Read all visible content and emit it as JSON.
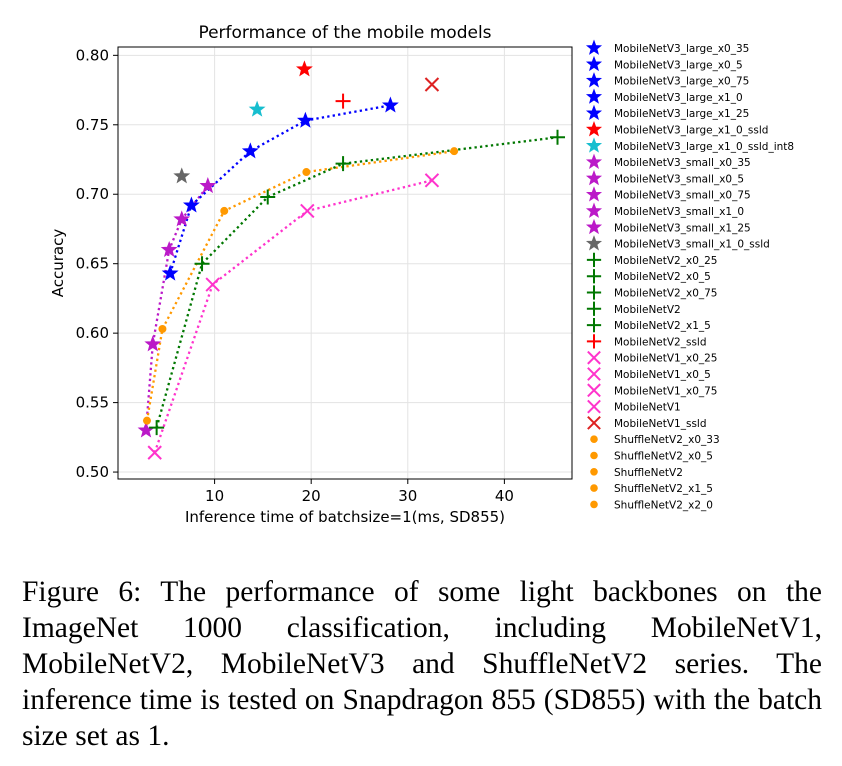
{
  "caption": "Figure 6: The performance of some light backbones on the ImageNet 1000 classification, including MobileNetV1, MobileNetV2, MobileNetV3 and ShuffleNetV2 series. The inference time is tested on Snapdragon 855 (SD855) with the batch size set as 1.",
  "chart_data": {
    "type": "scatter",
    "title": "Performance of the mobile models",
    "xlabel": "Inference time of batchsize=1(ms, SD855)",
    "ylabel": "Accuracy",
    "xlim": [
      0,
      47
    ],
    "ylim": [
      0.495,
      0.806
    ],
    "xticks": [
      10,
      20,
      30,
      40
    ],
    "yticks": [
      0.5,
      0.55,
      0.6,
      0.65,
      0.7,
      0.75,
      0.8
    ],
    "xtick_labels": [
      "10",
      "20",
      "30",
      "40"
    ],
    "ytick_labels": [
      "0.50",
      "0.55",
      "0.60",
      "0.65",
      "0.70",
      "0.75",
      "0.80"
    ],
    "grid": true,
    "legend_position": "outside-right",
    "colors": {
      "blue": "#0000ff",
      "red": "#ff0000",
      "cyan": "#17becf",
      "purple": "#bb19c8",
      "gray": "#666666",
      "green": "#007700",
      "pink": "#ff33cc",
      "orange": "#ff9900",
      "darkred": "#dd2222"
    },
    "series": [
      {
        "name": "MobileNetV3_large_x0_35",
        "marker": "star",
        "color": "blue",
        "line": "mnv3_large",
        "x": 5.4,
        "y": 0.643
      },
      {
        "name": "MobileNetV3_large_x0_5",
        "marker": "star",
        "color": "blue",
        "line": "mnv3_large",
        "x": 7.6,
        "y": 0.692
      },
      {
        "name": "MobileNetV3_large_x0_75",
        "marker": "star",
        "color": "blue",
        "line": "mnv3_large",
        "x": 13.7,
        "y": 0.731
      },
      {
        "name": "MobileNetV3_large_x1_0",
        "marker": "star",
        "color": "blue",
        "line": "mnv3_large",
        "x": 19.4,
        "y": 0.753
      },
      {
        "name": "MobileNetV3_large_x1_25",
        "marker": "star",
        "color": "blue",
        "line": "mnv3_large",
        "x": 28.2,
        "y": 0.764
      },
      {
        "name": "MobileNetV3_large_x1_0_ssld",
        "marker": "star",
        "color": "red",
        "x": 19.3,
        "y": 0.79
      },
      {
        "name": "MobileNetV3_large_x1_0_ssld_int8",
        "marker": "star",
        "color": "cyan",
        "x": 14.4,
        "y": 0.761
      },
      {
        "name": "MobileNetV3_small_x0_35",
        "marker": "star",
        "color": "purple",
        "line": "mnv3_small",
        "x": 2.9,
        "y": 0.53
      },
      {
        "name": "MobileNetV3_small_x0_5",
        "marker": "star",
        "color": "purple",
        "line": "mnv3_small",
        "x": 3.6,
        "y": 0.592
      },
      {
        "name": "MobileNetV3_small_x0_75",
        "marker": "star",
        "color": "purple",
        "line": "mnv3_small",
        "x": 5.3,
        "y": 0.66
      },
      {
        "name": "MobileNetV3_small_x1_0",
        "marker": "star",
        "color": "purple",
        "line": "mnv3_small",
        "x": 6.6,
        "y": 0.682
      },
      {
        "name": "MobileNetV3_small_x1_25",
        "marker": "star",
        "color": "purple",
        "line": "mnv3_small",
        "x": 9.3,
        "y": 0.706
      },
      {
        "name": "MobileNetV3_small_x1_0_ssld",
        "marker": "star",
        "color": "gray",
        "x": 6.6,
        "y": 0.713
      },
      {
        "name": "MobileNetV2_x0_25",
        "marker": "plus",
        "color": "green",
        "line": "mnv2",
        "x": 4.0,
        "y": 0.532
      },
      {
        "name": "MobileNetV2_x0_5",
        "marker": "plus",
        "color": "green",
        "line": "mnv2",
        "x": 8.7,
        "y": 0.65
      },
      {
        "name": "MobileNetV2_x0_75",
        "marker": "plus",
        "color": "green",
        "line": "mnv2",
        "x": 15.5,
        "y": 0.698
      },
      {
        "name": "MobileNetV2",
        "marker": "plus",
        "color": "green",
        "line": "mnv2",
        "x": 23.3,
        "y": 0.722
      },
      {
        "name": "MobileNetV2_x1_5",
        "marker": "plus",
        "color": "green",
        "line": "mnv2",
        "x": 45.5,
        "y": 0.741
      },
      {
        "name": "MobileNetV2_ssld",
        "marker": "plus",
        "color": "red",
        "x": 23.3,
        "y": 0.767
      },
      {
        "name": "MobileNetV1_x0_25",
        "marker": "x",
        "color": "pink",
        "line": "mnv1",
        "x": 3.8,
        "y": 0.514
      },
      {
        "name": "MobileNetV1_x0_5",
        "marker": "x",
        "color": "pink",
        "line": "mnv1",
        "x": 9.8,
        "y": 0.635
      },
      {
        "name": "MobileNetV1_x0_75",
        "marker": "x",
        "color": "pink",
        "line": "mnv1",
        "x": 19.6,
        "y": 0.688
      },
      {
        "name": "MobileNetV1",
        "marker": "x",
        "color": "pink",
        "line": "mnv1",
        "x": 32.5,
        "y": 0.71
      },
      {
        "name": "MobileNetV1_ssld",
        "marker": "x",
        "color": "darkred",
        "x": 32.5,
        "y": 0.779
      },
      {
        "name": "ShuffleNetV2_x0_33",
        "marker": "dot",
        "color": "orange",
        "line": "shufflev2",
        "x": 3.0,
        "y": 0.537
      },
      {
        "name": "ShuffleNetV2_x0_5",
        "marker": "dot",
        "color": "orange",
        "line": "shufflev2",
        "x": 4.6,
        "y": 0.603
      },
      {
        "name": "ShuffleNetV2",
        "marker": "dot",
        "color": "orange",
        "line": "shufflev2",
        "x": 11.0,
        "y": 0.688
      },
      {
        "name": "ShuffleNetV2_x1_5",
        "marker": "dot",
        "color": "orange",
        "line": "shufflev2",
        "x": 19.5,
        "y": 0.716
      },
      {
        "name": "ShuffleNetV2_x2_0",
        "marker": "dot",
        "color": "orange",
        "line": "shufflev2",
        "x": 34.8,
        "y": 0.731
      }
    ],
    "lines": [
      {
        "group": "mnv3_small",
        "color": "purple"
      },
      {
        "group": "shufflev2",
        "color": "orange"
      },
      {
        "group": "mnv2",
        "color": "green"
      },
      {
        "group": "mnv1",
        "color": "pink"
      },
      {
        "group": "mnv3_large",
        "color": "blue"
      }
    ]
  }
}
